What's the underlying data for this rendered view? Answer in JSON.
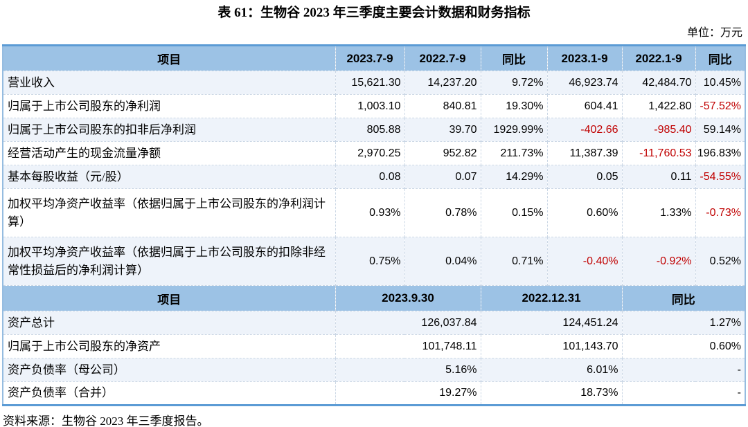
{
  "page": {
    "title": "表 61：生物谷 2023 年三季度主要会计数据和财务指标",
    "unit_label": "单位：万元",
    "source_note": "资料来源：生物谷 2023 年三季度报告。"
  },
  "colors": {
    "header_bg": "#9CC2E5",
    "row_alt_bg": "#EEF3FA",
    "frame_border": "#5B9BD5",
    "side_border": "#95BCE0",
    "grid_dash": "#CBD7E5",
    "negative_value": "#C00000"
  },
  "tables": {
    "quarter": {
      "headers": [
        "项目",
        "2023.7-9",
        "2022.7-9",
        "同比",
        "2023.1-9",
        "2022.1-9",
        "同比"
      ],
      "rows": [
        {
          "label": "营业收入",
          "values": [
            "15,621.30",
            "14,237.20",
            "9.72%",
            "46,923.74",
            "42,484.70",
            "10.45%"
          ],
          "neg": [],
          "tall": false
        },
        {
          "label": "归属于上市公司股东的净利润",
          "values": [
            "1,003.10",
            "840.81",
            "19.30%",
            "604.41",
            "1,422.80",
            "-57.52%"
          ],
          "neg": [
            5
          ],
          "tall": false
        },
        {
          "label": "归属于上市公司股东的扣非后净利润",
          "values": [
            "805.88",
            "39.70",
            "1929.99%",
            "-402.66",
            "-985.40",
            "59.14%"
          ],
          "neg": [
            3,
            4
          ],
          "tall": false
        },
        {
          "label": "经营活动产生的现金流量净额",
          "values": [
            "2,970.25",
            "952.82",
            "211.73%",
            "11,387.39",
            "-11,760.53",
            "196.83%"
          ],
          "neg": [
            4
          ],
          "tall": false
        },
        {
          "label": "基本每股收益（元/股）",
          "values": [
            "0.08",
            "0.07",
            "14.29%",
            "0.05",
            "0.11",
            "-54.55%"
          ],
          "neg": [
            5
          ],
          "tall": false
        },
        {
          "label": "加权平均净资产收益率（依据归属于上市公司股东的净利润计算）",
          "values": [
            "0.93%",
            "0.78%",
            "0.15%",
            "0.60%",
            "1.33%",
            "-0.73%"
          ],
          "neg": [
            5
          ],
          "tall": true
        },
        {
          "label": "加权平均净资产收益率（依据归属于上市公司股东的扣除非经常性损益后的净利润计算）",
          "values": [
            "0.75%",
            "0.04%",
            "0.71%",
            "-0.40%",
            "-0.92%",
            "0.52%"
          ],
          "neg": [
            3,
            4
          ],
          "tall": true
        }
      ]
    },
    "balance": {
      "headers": [
        "项目",
        "2023.9.30",
        "2022.12.31",
        "同比"
      ],
      "rows": [
        {
          "label": "资产总计",
          "values": [
            "126,037.84",
            "124,451.24",
            "1.27%"
          ],
          "neg": [],
          "tall": false
        },
        {
          "label": "归属于上市公司股东的净资产",
          "values": [
            "101,748.11",
            "101,143.70",
            "0.60%"
          ],
          "neg": [],
          "tall": false
        },
        {
          "label": "资产负债率（母公司）",
          "values": [
            "5.16%",
            "6.01%",
            "-"
          ],
          "neg": [],
          "tall": false
        },
        {
          "label": "资产负债率（合并）",
          "values": [
            "19.27%",
            "18.73%",
            "-"
          ],
          "neg": [],
          "tall": false
        }
      ]
    }
  }
}
